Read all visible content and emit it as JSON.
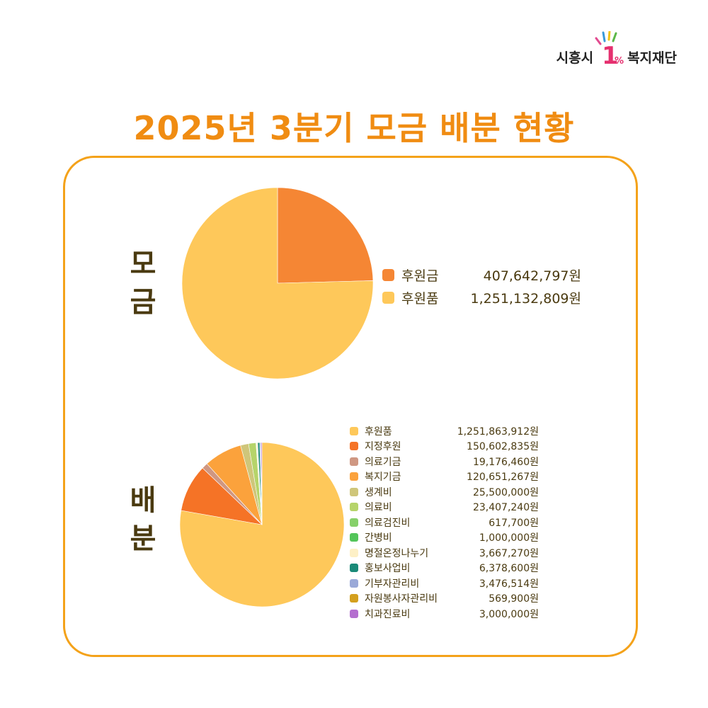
{
  "logo": {
    "prefix": "시흥시",
    "one": "1",
    "percent": "%",
    "suffix": "복지재단"
  },
  "title": "2025년 3분기 모금 배분 현황",
  "chart_data": [
    {
      "type": "pie",
      "label": "모금",
      "slices": [
        {
          "name": "후원금",
          "value": 407642797,
          "display": "407,642,797원",
          "color": "#f58634"
        },
        {
          "name": "후원품",
          "value": 1251132809,
          "display": "1,251,132,809원",
          "color": "#fec85a"
        }
      ]
    },
    {
      "type": "pie",
      "label": "배분",
      "slices": [
        {
          "name": "후원품",
          "value": 1251863912,
          "display": "1,251,863,912원",
          "color": "#fec85a"
        },
        {
          "name": "지정후원",
          "value": 150602835,
          "display": "150,602,835원",
          "color": "#f57326"
        },
        {
          "name": "의료기금",
          "value": 19176460,
          "display": "19,176,460원",
          "color": "#cf9782"
        },
        {
          "name": "복지기금",
          "value": 120651267,
          "display": "120,651,267원",
          "color": "#fba23c"
        },
        {
          "name": "생계비",
          "value": 25500000,
          "display": "25,500,000원",
          "color": "#cfc67a"
        },
        {
          "name": "의료비",
          "value": 23407240,
          "display": "23,407,240원",
          "color": "#b6d46a"
        },
        {
          "name": "의료검진비",
          "value": 617700,
          "display": "617,700원",
          "color": "#86d06a"
        },
        {
          "name": "간병비",
          "value": 1000000,
          "display": "1,000,000원",
          "color": "#54c55a"
        },
        {
          "name": "명절온정나누기",
          "value": 3667270,
          "display": "3,667,270원",
          "color": "#fdf0c6"
        },
        {
          "name": "홍보사업비",
          "value": 6378600,
          "display": "6,378,600원",
          "color": "#1a8a78"
        },
        {
          "name": "기부자관리비",
          "value": 3476514,
          "display": "3,476,514원",
          "color": "#9aa9d8"
        },
        {
          "name": "자원봉사자관리비",
          "value": 569900,
          "display": "569,900원",
          "color": "#d4a01e"
        },
        {
          "name": "치과진료비",
          "value": 3000000,
          "display": "3,000,000원",
          "color": "#b46fcf"
        }
      ]
    }
  ]
}
